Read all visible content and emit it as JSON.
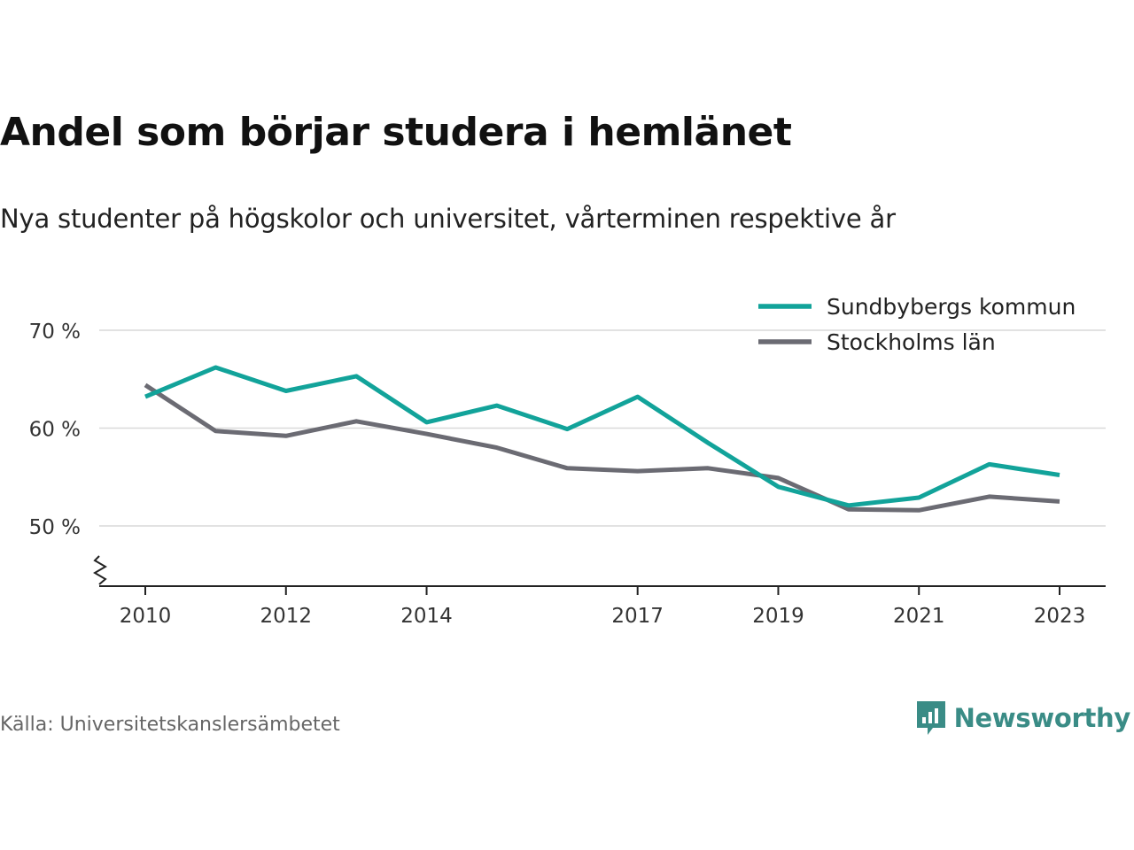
{
  "chart_data": {
    "type": "line",
    "title": "Andel som börjar studera i hemlänet",
    "subtitle": "Nya studenter på högskolor och universitet, vårterminen respektive år",
    "x": [
      2010,
      2011,
      2012,
      2013,
      2014,
      2015,
      2016,
      2017,
      2018,
      2019,
      2020,
      2021,
      2022,
      2023
    ],
    "x_tick_labels": [
      "2010",
      "2012",
      "2014",
      "2017",
      "2019",
      "2021",
      "2023"
    ],
    "y_tick_labels": [
      "70 %",
      "60 %",
      "50 %"
    ],
    "y_ticks": [
      70,
      60,
      50
    ],
    "ylim": [
      44,
      73
    ],
    "xlabel": "",
    "ylabel": "",
    "grid": true,
    "legend_position": "top-right",
    "series": [
      {
        "name": "Sundbybergs kommun",
        "color": "#12a39a",
        "values": [
          63.2,
          66.2,
          63.8,
          65.3,
          60.6,
          62.3,
          59.9,
          63.2,
          58.5,
          54.0,
          52.1,
          52.9,
          56.3,
          55.2
        ]
      },
      {
        "name": "Stockholms län",
        "color": "#6b6b73",
        "values": [
          64.4,
          59.7,
          59.2,
          60.7,
          59.4,
          58.0,
          55.9,
          55.6,
          55.9,
          54.9,
          51.7,
          51.6,
          53.0,
          52.5
        ]
      }
    ]
  },
  "footer": {
    "source": "Källa: Universitetskanslersämbetet",
    "logo_text": "Newsworthy"
  },
  "colors": {
    "accent": "#12a39a",
    "secondary": "#6b6b73",
    "grid": "#d9d9d9",
    "brand": "#3a8c86"
  }
}
